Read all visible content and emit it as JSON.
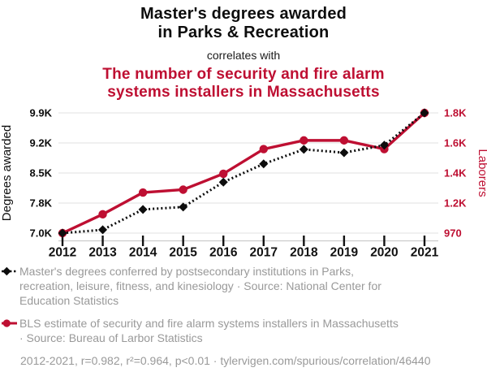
{
  "chart_data": {
    "type": "line",
    "title": "Master's degrees awarded\nin Parks & Recreation",
    "connector": "correlates with",
    "subtitle": "The number of security and fire alarm\nsystems installers in Massachusetts",
    "x": [
      2012,
      2013,
      2014,
      2015,
      2016,
      2017,
      2018,
      2019,
      2020,
      2021
    ],
    "x_tick_labels": [
      "2012",
      "2013",
      "2014",
      "2015",
      "2016",
      "2017",
      "2018",
      "2019",
      "2020",
      "2021"
    ],
    "series": [
      {
        "name": "Master's degrees conferred by postsecondary institutions in Parks, recreation, leisure, fitness, and kinesiology",
        "source": "National Center for Education Statistics",
        "axis": "left",
        "color": "#0d0d0d",
        "marker": "diamond",
        "line_style": "dashed",
        "values": [
          7000,
          7080,
          7570,
          7630,
          8230,
          8670,
          9020,
          8940,
          9120,
          9900
        ]
      },
      {
        "name": "BLS estimate of security and fire alarm systems installers in Massachusetts",
        "source": "Bureau of Larbor Statistics",
        "axis": "right",
        "color": "#be0f32",
        "marker": "circle",
        "line_style": "solid",
        "values": [
          970,
          1100,
          1250,
          1270,
          1380,
          1550,
          1610,
          1610,
          1550,
          1800
        ]
      }
    ],
    "left_axis": {
      "label": "Degrees awarded",
      "tick_labels": [
        "7.0K",
        "7.8K",
        "8.5K",
        "9.2K",
        "9.9K"
      ],
      "min": 7000,
      "max": 9900
    },
    "right_axis": {
      "label": "Laborers",
      "tick_labels": [
        "970",
        "1.2K",
        "1.4K",
        "1.6K",
        "1.8K"
      ],
      "min": 970,
      "max": 1800
    },
    "grid": true,
    "legend_position": "bottom"
  },
  "legend": {
    "item1": "Master's degrees conferred by postsecondary institutions in Parks,\nrecreation, leisure, fitness, and kinesiology · Source: National Center for\nEducation Statistics",
    "item2": "BLS estimate of security and fire alarm systems installers in Massachusetts\n· Source: Bureau of Larbor Statistics",
    "footer": "2012-2021, r=0.982, r²=0.964, p<0.01 · tylervigen.com/spurious/correlation/46440"
  },
  "colors": {
    "red": "#be0f32",
    "black": "#0d0d0d",
    "gray_text": "#999999",
    "gridline": "#e8e8e8",
    "axis_line": "#cccccc"
  }
}
